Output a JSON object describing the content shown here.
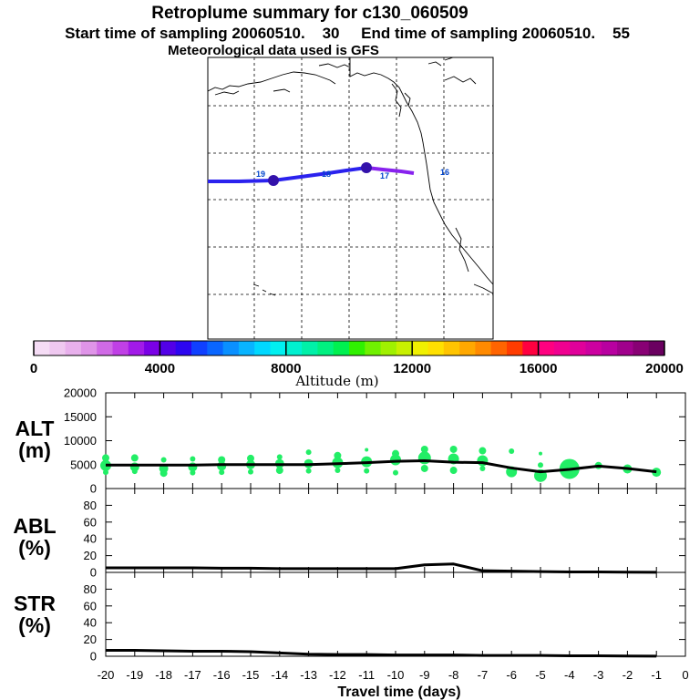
{
  "header": {
    "title": "Retroplume summary for c130_060509",
    "line2": "Start time of sampling 20060510.    30     End time of sampling 20060510.    55",
    "line3": "Meteorological data used is GFS"
  },
  "map": {
    "trajectory_labels": [
      {
        "text": "19",
        "color": "#0044cc"
      },
      {
        "text": "18",
        "color": "#0044cc"
      },
      {
        "text": "17",
        "color": "#0044cc"
      },
      {
        "text": "16",
        "color": "#0044cc"
      }
    ]
  },
  "colorbar": {
    "tick_labels": [
      "0",
      "4000",
      "8000",
      "12000",
      "16000",
      "20000"
    ],
    "label": "Altitude (m)",
    "range": [
      0,
      20000
    ],
    "colors": [
      "#f5dcf5",
      "#efc8f0",
      "#e8b0ec",
      "#df94e8",
      "#d06ae6",
      "#c040e6",
      "#a21ae8",
      "#7a00e6",
      "#5200e8",
      "#2c06f0",
      "#1040ff",
      "#0a66ff",
      "#0a90ff",
      "#08b4ff",
      "#00d8ff",
      "#00f0f0",
      "#00f0d0",
      "#00f0a8",
      "#00f080",
      "#00f050",
      "#30f000",
      "#70f000",
      "#a0f000",
      "#c8f000",
      "#f0f000",
      "#ffe000",
      "#ffc400",
      "#ffa800",
      "#ff8a00",
      "#ff6400",
      "#ff3c00",
      "#ff0040",
      "#ff0080",
      "#f00090",
      "#e0009a",
      "#cc00a0",
      "#b800a0",
      "#a0008c",
      "#880074",
      "#6a0060"
    ]
  },
  "chart_data": [
    {
      "type": "line",
      "title": "ALT (m)",
      "ylabel": "ALT\n(m)",
      "ylabel_lines": [
        "ALT",
        "(m)"
      ],
      "ylim": [
        0,
        20000
      ],
      "yticks": [
        "0",
        "5000",
        "10000",
        "15000",
        "20000"
      ],
      "x": [
        -20,
        -19,
        -18,
        -17,
        -16,
        -15,
        -14,
        -13,
        -12,
        -11,
        -10,
        -9,
        -8,
        -7,
        -6,
        -5,
        -4,
        -3,
        -2,
        -1
      ],
      "values": [
        4900,
        4900,
        4900,
        4900,
        5000,
        5000,
        5000,
        5000,
        5200,
        5400,
        5700,
        5800,
        5500,
        5400,
        4300,
        3500,
        4000,
        4700,
        4200,
        3500
      ],
      "scatter": [
        {
          "x": -20,
          "y": 4800,
          "size": 6
        },
        {
          "x": -20,
          "y": 6400,
          "size": 4
        },
        {
          "x": -20,
          "y": 3400,
          "size": 3
        },
        {
          "x": -19,
          "y": 4500,
          "size": 5
        },
        {
          "x": -19,
          "y": 6400,
          "size": 4
        },
        {
          "x": -19,
          "y": 3600,
          "size": 3
        },
        {
          "x": -18,
          "y": 4200,
          "size": 5
        },
        {
          "x": -18,
          "y": 6000,
          "size": 3
        },
        {
          "x": -18,
          "y": 3200,
          "size": 4
        },
        {
          "x": -17,
          "y": 4500,
          "size": 5
        },
        {
          "x": -17,
          "y": 6200,
          "size": 3
        },
        {
          "x": -17,
          "y": 3300,
          "size": 3
        },
        {
          "x": -16,
          "y": 4700,
          "size": 5
        },
        {
          "x": -16,
          "y": 6000,
          "size": 4
        },
        {
          "x": -16,
          "y": 3400,
          "size": 3
        },
        {
          "x": -15,
          "y": 5000,
          "size": 5
        },
        {
          "x": -15,
          "y": 6300,
          "size": 4
        },
        {
          "x": -15,
          "y": 3500,
          "size": 3
        },
        {
          "x": -14,
          "y": 5200,
          "size": 5
        },
        {
          "x": -14,
          "y": 6600,
          "size": 3
        },
        {
          "x": -14,
          "y": 3800,
          "size": 4
        },
        {
          "x": -13,
          "y": 5200,
          "size": 5
        },
        {
          "x": -13,
          "y": 7600,
          "size": 3
        },
        {
          "x": -13,
          "y": 3700,
          "size": 3
        },
        {
          "x": -12,
          "y": 5400,
          "size": 6
        },
        {
          "x": -12,
          "y": 6900,
          "size": 4
        },
        {
          "x": -12,
          "y": 3800,
          "size": 3
        },
        {
          "x": -11,
          "y": 5600,
          "size": 6
        },
        {
          "x": -11,
          "y": 8100,
          "size": 2
        },
        {
          "x": -11,
          "y": 3700,
          "size": 3
        },
        {
          "x": -10,
          "y": 6000,
          "size": 6
        },
        {
          "x": -10,
          "y": 7300,
          "size": 4
        },
        {
          "x": -10,
          "y": 3300,
          "size": 3
        },
        {
          "x": -9,
          "y": 6400,
          "size": 7
        },
        {
          "x": -9,
          "y": 8200,
          "size": 4
        },
        {
          "x": -9,
          "y": 4200,
          "size": 4
        },
        {
          "x": -8,
          "y": 6200,
          "size": 6
        },
        {
          "x": -8,
          "y": 8200,
          "size": 4
        },
        {
          "x": -8,
          "y": 3800,
          "size": 4
        },
        {
          "x": -7,
          "y": 5800,
          "size": 6
        },
        {
          "x": -7,
          "y": 7900,
          "size": 4
        },
        {
          "x": -7,
          "y": 4200,
          "size": 3
        },
        {
          "x": -6,
          "y": 3500,
          "size": 6
        },
        {
          "x": -6,
          "y": 7800,
          "size": 3
        },
        {
          "x": -5,
          "y": 2700,
          "size": 7
        },
        {
          "x": -5,
          "y": 4900,
          "size": 3
        },
        {
          "x": -5,
          "y": 7300,
          "size": 2
        },
        {
          "x": -4,
          "y": 4100,
          "size": 11
        },
        {
          "x": -3,
          "y": 4800,
          "size": 4
        },
        {
          "x": -2,
          "y": 4100,
          "size": 5
        },
        {
          "x": -1,
          "y": 3400,
          "size": 5
        }
      ]
    },
    {
      "type": "line",
      "title": "ABL (%)",
      "ylabel": "ABL\n(%)",
      "ylabel_lines": [
        "ABL",
        "(%)"
      ],
      "ylim": [
        0,
        100
      ],
      "yticks": [
        "0",
        "20",
        "40",
        "60",
        "80"
      ],
      "x": [
        -20,
        -19,
        -18,
        -17,
        -16,
        -15,
        -14,
        -13,
        -12,
        -11,
        -10,
        -9,
        -8,
        -7,
        -6,
        -5,
        -4,
        -3,
        -2,
        -1
      ],
      "values": [
        5.5,
        5.5,
        5.5,
        5.5,
        5,
        5,
        4.5,
        4.5,
        4.5,
        4.5,
        4.5,
        9,
        10,
        2,
        1.5,
        1,
        0.5,
        0.5,
        0.3,
        0.2
      ]
    },
    {
      "type": "line",
      "title": "STR (%)",
      "ylabel": "STR\n(%)",
      "ylabel_lines": [
        "STR",
        "(%)"
      ],
      "ylim": [
        0,
        100
      ],
      "yticks": [
        "0",
        "20",
        "40",
        "60",
        "80"
      ],
      "x": [
        -20,
        -19,
        -18,
        -17,
        -16,
        -15,
        -14,
        -13,
        -12,
        -11,
        -10,
        -9,
        -8,
        -7,
        -6,
        -5,
        -4,
        -3,
        -2,
        -1
      ],
      "values": [
        7,
        7,
        6.5,
        6,
        6,
        5.5,
        4,
        2.5,
        2,
        2,
        1.5,
        1.5,
        1.5,
        1,
        1,
        1,
        0.5,
        0.5,
        0.3,
        0.2
      ]
    }
  ],
  "xaxis": {
    "tick_labels": [
      "-20",
      "-19",
      "-18",
      "-17",
      "-16",
      "-15",
      "-14",
      "-13",
      "-12",
      "-11",
      "-10",
      "-9",
      "-8",
      "-7",
      "-6",
      "-5",
      "-4",
      "-3",
      "-2",
      "-1",
      "0"
    ],
    "label": "Travel time (days)",
    "xlim": [
      -20,
      0
    ]
  },
  "colors": {
    "line": "#000000",
    "scatter": "#22ee66",
    "trajectory_start": "#2222ee",
    "trajectory_end": "#8822ee",
    "marker": "#3311aa"
  }
}
